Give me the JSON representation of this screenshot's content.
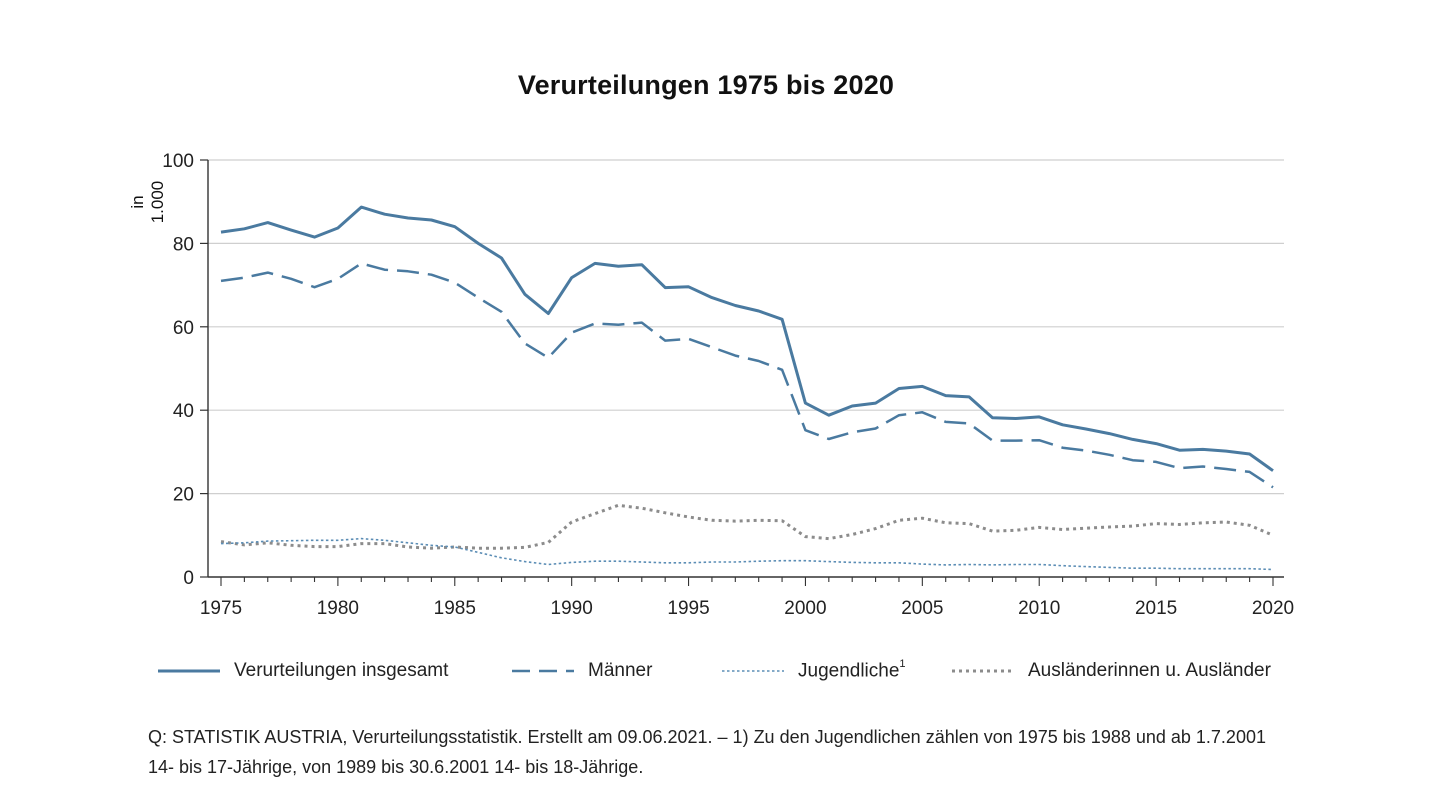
{
  "chart_data": {
    "type": "line",
    "title": "Verurteilungen 1975 bis 2020",
    "xlabel": "",
    "ylabel": "in 1.000",
    "xlim": [
      1975,
      2020
    ],
    "ylim": [
      0,
      100
    ],
    "yticks": [
      0,
      20,
      40,
      60,
      80,
      100
    ],
    "xticks": [
      1975,
      1980,
      1985,
      1990,
      1995,
      2000,
      2005,
      2010,
      2015,
      2020
    ],
    "grid": "horizontal",
    "x": [
      1975,
      1976,
      1977,
      1978,
      1979,
      1980,
      1981,
      1982,
      1983,
      1984,
      1985,
      1986,
      1987,
      1988,
      1989,
      1990,
      1991,
      1992,
      1993,
      1994,
      1995,
      1996,
      1997,
      1998,
      1999,
      2000,
      2001,
      2002,
      2003,
      2004,
      2005,
      2006,
      2007,
      2008,
      2009,
      2010,
      2011,
      2012,
      2013,
      2014,
      2015,
      2016,
      2017,
      2018,
      2019,
      2020
    ],
    "series": [
      {
        "name": "Verurteilungen insgesamt",
        "style": "solid",
        "color": "#4a7aa0",
        "values": [
          82.7,
          83.5,
          85.0,
          83.2,
          81.5,
          83.7,
          88.7,
          87.0,
          86.1,
          85.6,
          84.0,
          80.0,
          76.5,
          67.8,
          63.2,
          71.8,
          75.2,
          74.5,
          74.9,
          69.4,
          69.6,
          67.0,
          65.1,
          63.8,
          61.8,
          41.7,
          38.8,
          41.0,
          41.7,
          45.2,
          45.7,
          43.5,
          43.2,
          38.2,
          38.0,
          38.4,
          36.5,
          35.5,
          34.4,
          33.0,
          32.0,
          30.4,
          30.6,
          30.2,
          29.5,
          25.5
        ]
      },
      {
        "name": "Männer",
        "style": "dashed",
        "color": "#4a7aa0",
        "values": [
          71.0,
          71.8,
          73.0,
          71.5,
          69.5,
          71.5,
          75.2,
          73.7,
          73.3,
          72.5,
          70.6,
          67.0,
          63.6,
          56.0,
          52.6,
          58.6,
          60.8,
          60.5,
          61.0,
          56.7,
          57.1,
          55.1,
          53.1,
          51.8,
          49.7,
          35.2,
          33.1,
          34.7,
          35.6,
          38.8,
          39.5,
          37.2,
          36.8,
          32.7,
          32.7,
          32.8,
          31.0,
          30.3,
          29.3,
          28.0,
          27.6,
          26.1,
          26.5,
          25.9,
          25.2,
          21.5
        ]
      },
      {
        "name": "Jugendliche",
        "name_sup": "1",
        "style": "dotted-fine",
        "color": "#5b8db5",
        "values": [
          8.0,
          8.2,
          8.6,
          8.7,
          8.8,
          8.8,
          9.2,
          8.8,
          8.2,
          7.6,
          7.2,
          5.9,
          4.6,
          3.7,
          3.0,
          3.5,
          3.8,
          3.8,
          3.6,
          3.4,
          3.4,
          3.6,
          3.6,
          3.8,
          3.9,
          3.9,
          3.7,
          3.5,
          3.4,
          3.4,
          3.1,
          2.9,
          3.0,
          2.9,
          3.0,
          3.0,
          2.7,
          2.5,
          2.3,
          2.1,
          2.1,
          2.0,
          2.0,
          2.0,
          2.0,
          1.8
        ]
      },
      {
        "name": "Ausländerinnen u. Ausländer",
        "style": "dotted-bold",
        "color": "#8c8c8c",
        "values": [
          8.5,
          7.7,
          8.2,
          7.6,
          7.3,
          7.3,
          8.0,
          8.0,
          7.2,
          6.9,
          7.2,
          6.9,
          6.9,
          7.1,
          8.3,
          13.2,
          15.2,
          17.2,
          16.5,
          15.4,
          14.4,
          13.6,
          13.4,
          13.6,
          13.5,
          9.7,
          9.2,
          10.2,
          11.6,
          13.6,
          14.1,
          13.0,
          12.8,
          11.0,
          11.2,
          11.9,
          11.4,
          11.7,
          12.0,
          12.2,
          12.8,
          12.6,
          13.0,
          13.2,
          12.4,
          10.0
        ]
      }
    ],
    "legend_position": "bottom"
  },
  "source_note": {
    "line1": "Q: STATISTIK AUSTRIA, Verurteilungsstatistik. Erstellt am 09.06.2021. – 1) Zu den Jugendlichen zählen von 1975 bis 1988 und ab 1.7.2001",
    "line2": "14- bis 17-Jährige, von 1989 bis 30.6.2001 14- bis 18-Jährige."
  }
}
